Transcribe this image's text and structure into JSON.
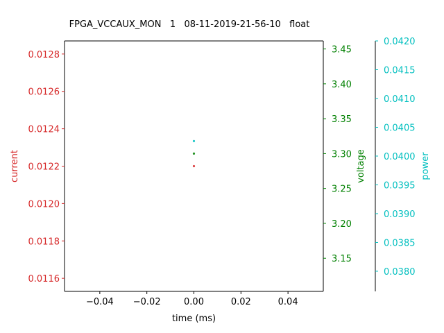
{
  "chart_data": {
    "type": "scatter",
    "title": "FPGA_VCCAUX_MON   1   08-11-2019-21-56-10   float",
    "xlabel": "time (ms)",
    "xlim": [
      -0.055,
      0.055
    ],
    "xticks": [
      -0.04,
      -0.02,
      0.0,
      0.02,
      0.04
    ],
    "xtick_labels": [
      "−0.04",
      "−0.02",
      "0.00",
      "0.02",
      "0.04"
    ],
    "grid": false,
    "axes": [
      {
        "key": "current",
        "label": "current",
        "side": "left",
        "color": "#d62728",
        "ylim": [
          0.01153,
          0.01287
        ],
        "ticks": [
          0.0116,
          0.0118,
          0.012,
          0.0122,
          0.0124,
          0.0126,
          0.0128
        ],
        "tick_labels": [
          "0.0116",
          "0.0118",
          "0.0120",
          "0.0122",
          "0.0124",
          "0.0126",
          "0.0128"
        ]
      },
      {
        "key": "voltage",
        "label": "voltage",
        "side": "right",
        "color": "#008000",
        "ylim": [
          3.1025,
          3.4615
        ],
        "ticks": [
          3.15,
          3.2,
          3.25,
          3.3,
          3.35,
          3.4,
          3.45
        ],
        "tick_labels": [
          "3.15",
          "3.20",
          "3.25",
          "3.30",
          "3.35",
          "3.40",
          "3.45"
        ]
      },
      {
        "key": "power",
        "label": "power",
        "side": "right-offset",
        "color": "#00bfbf",
        "ylim": [
          0.03765,
          0.042
        ],
        "ticks": [
          0.038,
          0.0385,
          0.039,
          0.0395,
          0.04,
          0.0405,
          0.041,
          0.0415,
          0.042
        ],
        "tick_labels": [
          "0.0380",
          "0.0385",
          "0.0390",
          "0.0395",
          "0.0400",
          "0.0405",
          "0.0410",
          "0.0415",
          "0.0420"
        ]
      }
    ],
    "series": [
      {
        "axis": "current",
        "color": "#d62728",
        "points": [
          [
            0.0,
            0.0122
          ]
        ]
      },
      {
        "axis": "voltage",
        "color": "#008000",
        "points": [
          [
            0.0,
            3.3
          ]
        ]
      },
      {
        "axis": "power",
        "color": "#00bfbf",
        "points": [
          [
            0.0,
            0.04026
          ]
        ]
      }
    ]
  }
}
